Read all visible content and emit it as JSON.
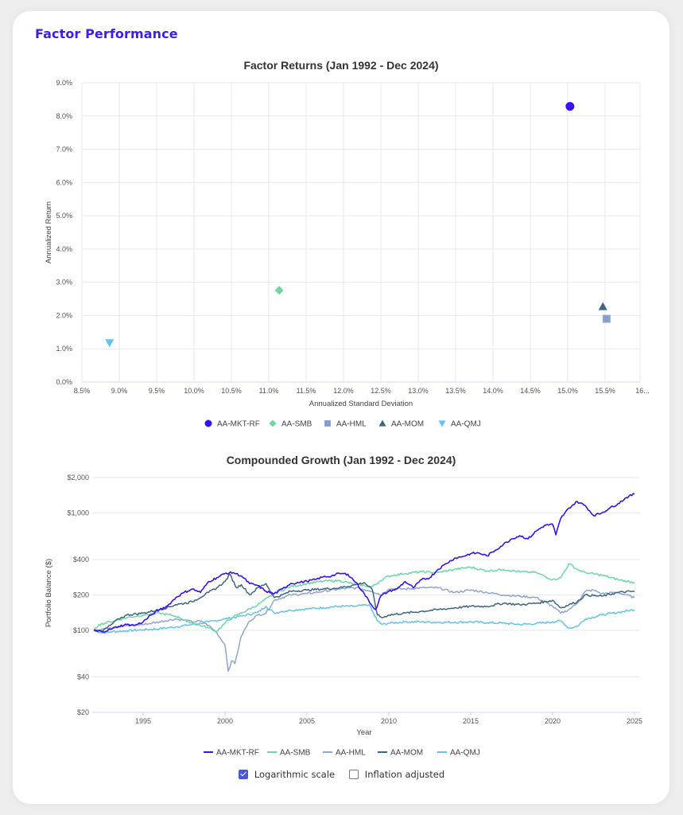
{
  "page": {
    "title": "Factor Performance"
  },
  "options": {
    "log_scale": {
      "label": "Logarithmic scale",
      "checked": true
    },
    "inflation": {
      "label": "Inflation adjusted",
      "checked": false
    }
  },
  "colors": {
    "AA-MKT-RF": "#3a12f2",
    "AA-SMB": "#6fd6a6",
    "AA-HML": "#8fa6cc",
    "AA-MOM": "#3f6680",
    "AA-QMJ": "#63c3ea"
  },
  "chart_data": [
    {
      "type": "scatter",
      "title": "Factor Returns (Jan 1992 - Dec 2024)",
      "xlabel": "Annualized Standard Deviation",
      "ylabel": "Annualized Return",
      "xlim": [
        8.5,
        16.2
      ],
      "ylim": [
        0.0,
        9.0
      ],
      "x_ticks": [
        "8.5%",
        "9.0%",
        "9.5%",
        "10.0%",
        "10.5%",
        "11.0%",
        "11.5%",
        "12.0%",
        "12.5%",
        "13.0%",
        "13.5%",
        "14.0%",
        "14.5%",
        "15.0%",
        "15.5%",
        "16..."
      ],
      "y_ticks": [
        "0.0%",
        "1.0%",
        "2.0%",
        "3.0%",
        "4.0%",
        "5.0%",
        "6.0%",
        "7.0%",
        "8.0%",
        "9.0%"
      ],
      "grid": true,
      "legend": "bottom",
      "points": [
        {
          "name": "AA-MKT-RF",
          "marker": "circle",
          "x": 15.03,
          "y": 8.29
        },
        {
          "name": "AA-SMB",
          "marker": "diamond",
          "x": 11.14,
          "y": 2.76
        },
        {
          "name": "AA-HML",
          "marker": "square",
          "x": 15.52,
          "y": 1.9
        },
        {
          "name": "AA-MOM",
          "marker": "triangle-up",
          "x": 15.47,
          "y": 2.27
        },
        {
          "name": "AA-QMJ",
          "marker": "triangle-down",
          "x": 8.87,
          "y": 1.18
        }
      ]
    },
    {
      "type": "line",
      "title": "Compounded Growth (Jan 1992 - Dec 2024)",
      "xlabel": "Year",
      "ylabel": "Portfolio Balance ($)",
      "yscale": "log",
      "xlim": [
        1992.0,
        2025.0
      ],
      "ylim": [
        20,
        2000
      ],
      "x_ticks": [
        "1995",
        "2000",
        "2005",
        "2010",
        "2015",
        "2020",
        "2025"
      ],
      "y_ticks": [
        "$20",
        "$40",
        "$100",
        "$200",
        "$400",
        "$1,000",
        "$2,000"
      ],
      "y_tick_values": [
        20,
        40,
        100,
        200,
        400,
        1000,
        2000
      ],
      "grid": true,
      "legend": "bottom",
      "series": [
        {
          "name": "AA-MKT-RF",
          "x": [
            1992.0,
            1992.5,
            1993.0,
            1993.5,
            1994.0,
            1994.5,
            1995.0,
            1995.5,
            1996.0,
            1996.5,
            1997.0,
            1997.5,
            1998.0,
            1998.5,
            1999.0,
            1999.5,
            2000.0,
            2000.5,
            2001.0,
            2001.5,
            2002.0,
            2002.5,
            2003.0,
            2003.5,
            2004.0,
            2004.5,
            2005.0,
            2005.5,
            2006.0,
            2006.5,
            2007.0,
            2007.5,
            2008.0,
            2008.5,
            2009.0,
            2009.2,
            2009.5,
            2010.0,
            2010.5,
            2011.0,
            2011.5,
            2012.0,
            2012.5,
            2013.0,
            2013.5,
            2014.0,
            2014.5,
            2015.0,
            2015.5,
            2016.0,
            2016.5,
            2017.0,
            2017.5,
            2018.0,
            2018.5,
            2019.0,
            2019.5,
            2020.0,
            2020.2,
            2020.5,
            2021.0,
            2021.5,
            2022.0,
            2022.5,
            2023.0,
            2023.5,
            2024.0,
            2024.5,
            2025.0
          ],
          "y": [
            100,
            97,
            102,
            108,
            112,
            110,
            118,
            135,
            150,
            162,
            190,
            210,
            225,
            210,
            260,
            280,
            305,
            310,
            290,
            250,
            240,
            215,
            205,
            225,
            250,
            255,
            262,
            270,
            285,
            290,
            305,
            300,
            255,
            205,
            160,
            150,
            195,
            215,
            225,
            260,
            230,
            270,
            280,
            330,
            370,
            410,
            425,
            450,
            455,
            430,
            480,
            540,
            600,
            640,
            600,
            700,
            780,
            800,
            650,
            900,
            1100,
            1250,
            1150,
            950,
            1000,
            1100,
            1200,
            1350,
            1450
          ]
        },
        {
          "name": "AA-SMB",
          "x": [
            1992.0,
            1992.3,
            1993.0,
            1994.0,
            1995.0,
            1996.0,
            1997.0,
            1998.0,
            1999.0,
            1999.5,
            2000.0,
            2000.5,
            2001.0,
            2002.0,
            2003.0,
            2004.0,
            2005.0,
            2006.0,
            2007.0,
            2008.0,
            2009.0,
            2009.5,
            2010.0,
            2011.0,
            2012.0,
            2013.0,
            2014.0,
            2015.0,
            2016.0,
            2017.0,
            2018.0,
            2019.0,
            2020.0,
            2020.5,
            2021.0,
            2021.5,
            2022.0,
            2023.0,
            2024.0,
            2025.0
          ],
          "y": [
            100,
            112,
            118,
            128,
            135,
            140,
            132,
            115,
            105,
            98,
            115,
            130,
            140,
            165,
            205,
            235,
            250,
            262,
            265,
            245,
            235,
            265,
            290,
            305,
            315,
            310,
            330,
            345,
            320,
            330,
            315,
            310,
            270,
            280,
            370,
            330,
            310,
            295,
            270,
            255
          ]
        },
        {
          "name": "AA-HML",
          "x": [
            1992.0,
            1993.0,
            1994.0,
            1995.0,
            1996.0,
            1997.0,
            1998.0,
            1998.5,
            1999.0,
            1999.5,
            2000.0,
            2000.2,
            2000.4,
            2000.6,
            2001.0,
            2001.5,
            2002.0,
            2002.5,
            2003.0,
            2004.0,
            2005.0,
            2006.0,
            2007.0,
            2008.0,
            2009.0,
            2009.5,
            2010.0,
            2011.0,
            2012.0,
            2013.0,
            2014.0,
            2015.0,
            2016.0,
            2017.0,
            2018.0,
            2019.0,
            2020.0,
            2020.5,
            2021.0,
            2021.5,
            2022.0,
            2022.5,
            2023.0,
            2024.0,
            2025.0
          ],
          "y": [
            100,
            105,
            110,
            112,
            118,
            125,
            118,
            120,
            110,
            95,
            75,
            45,
            55,
            52,
            90,
            120,
            135,
            140,
            180,
            200,
            205,
            215,
            225,
            230,
            215,
            200,
            225,
            225,
            230,
            230,
            210,
            220,
            210,
            200,
            195,
            190,
            160,
            140,
            150,
            170,
            215,
            220,
            205,
            210,
            190
          ]
        },
        {
          "name": "AA-MOM",
          "x": [
            1992.0,
            1992.5,
            1993.0,
            1993.5,
            1994.0,
            1995.0,
            1996.0,
            1997.0,
            1998.0,
            1999.0,
            1999.5,
            2000.0,
            2000.3,
            2000.7,
            2001.0,
            2001.5,
            2002.0,
            2002.5,
            2003.0,
            2003.5,
            2004.0,
            2005.0,
            2006.0,
            2007.0,
            2008.0,
            2008.5,
            2009.0,
            2009.3,
            2009.6,
            2010.0,
            2011.0,
            2012.0,
            2013.0,
            2014.0,
            2015.0,
            2016.0,
            2017.0,
            2018.0,
            2019.0,
            2020.0,
            2020.5,
            2021.0,
            2021.5,
            2022.0,
            2023.0,
            2024.0,
            2025.0
          ],
          "y": [
            100,
            98,
            110,
            125,
            135,
            140,
            150,
            165,
            175,
            210,
            230,
            260,
            300,
            230,
            245,
            200,
            230,
            250,
            190,
            200,
            215,
            220,
            225,
            230,
            245,
            255,
            220,
            135,
            128,
            135,
            140,
            145,
            150,
            155,
            160,
            160,
            170,
            165,
            170,
            180,
            155,
            165,
            175,
            200,
            195,
            210,
            215
          ]
        },
        {
          "name": "AA-QMJ",
          "x": [
            1992.0,
            1992.5,
            1993.0,
            1994.0,
            1995.0,
            1996.0,
            1997.0,
            1998.0,
            1999.0,
            2000.0,
            2001.0,
            2002.0,
            2002.5,
            2003.0,
            2003.5,
            2004.0,
            2005.0,
            2006.0,
            2007.0,
            2008.0,
            2008.8,
            2009.3,
            2009.6,
            2010.0,
            2011.0,
            2012.0,
            2013.0,
            2014.0,
            2015.0,
            2016.0,
            2017.0,
            2018.0,
            2019.0,
            2020.0,
            2020.5,
            2021.0,
            2021.5,
            2022.0,
            2023.0,
            2024.0,
            2025.0
          ],
          "y": [
            100,
            95,
            97,
            99,
            101,
            103,
            107,
            112,
            118,
            125,
            132,
            142,
            160,
            140,
            145,
            148,
            152,
            156,
            160,
            160,
            165,
            120,
            112,
            115,
            118,
            118,
            117,
            117,
            118,
            116,
            115,
            112,
            114,
            118,
            120,
            104,
            108,
            125,
            135,
            142,
            150
          ]
        }
      ]
    }
  ]
}
